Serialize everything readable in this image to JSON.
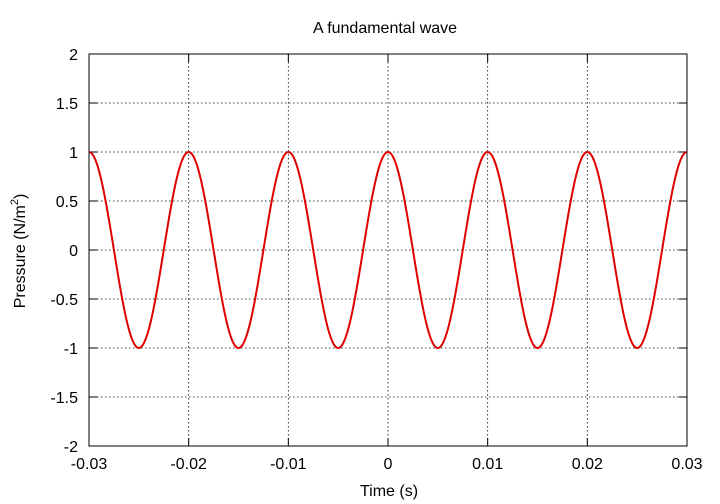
{
  "chart_data": {
    "type": "line",
    "title": "A fundamental wave",
    "xlabel": "Time (s)",
    "ylabel_main": "Pressure (N/m",
    "ylabel_sup": "2",
    "ylabel_close": ")",
    "xlim": [
      -0.03,
      0.03
    ],
    "ylim": [
      -2,
      2
    ],
    "grid": true,
    "x_ticks": [
      -0.03,
      -0.02,
      -0.01,
      0,
      0.01,
      0.02,
      0.03
    ],
    "x_tick_labels": [
      "-0.03",
      "-0.02",
      "-0.01",
      "0",
      "0.01",
      "0.02",
      "0.03"
    ],
    "y_ticks": [
      -2,
      -1.5,
      -1,
      -0.5,
      0,
      0.5,
      1,
      1.5,
      2
    ],
    "y_tick_labels": [
      "-2",
      "-1.5",
      "-1",
      "-0.5",
      "0",
      "0.5",
      "1",
      "1.5",
      "2"
    ],
    "series": [
      {
        "name": "fundamental wave",
        "function": "cos(2*pi*100*t)",
        "amplitude": 1,
        "frequency_hz": 100,
        "color": "#e00000"
      }
    ]
  }
}
